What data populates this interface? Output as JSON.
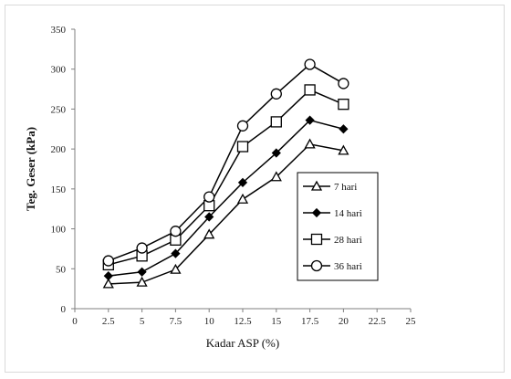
{
  "chart_data": {
    "type": "line",
    "xlabel": "Kadar ASP (%)",
    "ylabel": "Teg. Geser (kPa)",
    "xlim": [
      0,
      25
    ],
    "ylim": [
      0,
      350
    ],
    "xticks": [
      "0",
      "2.5",
      "5",
      "7.5",
      "10",
      "12.5",
      "15",
      "17.5",
      "20",
      "22.5",
      "25"
    ],
    "yticks": [
      "0",
      "50",
      "100",
      "150",
      "200",
      "250",
      "300",
      "350"
    ],
    "grid": false,
    "legend_position": "right",
    "x": [
      2.5,
      5,
      7.5,
      10,
      12.5,
      15,
      17.5,
      20
    ],
    "series": [
      {
        "name": "7 hari",
        "marker": "triangle",
        "values": [
          31,
          33,
          49,
          93,
          137,
          165,
          206,
          198
        ]
      },
      {
        "name": "14 hari",
        "marker": "diamond",
        "values": [
          41,
          46,
          69,
          115,
          158,
          195,
          236,
          225
        ]
      },
      {
        "name": "28 hari",
        "marker": "square",
        "values": [
          55,
          66,
          86,
          129,
          203,
          234,
          274,
          256
        ]
      },
      {
        "name": "36 hari",
        "marker": "circle",
        "values": [
          60,
          76,
          97,
          140,
          229,
          269,
          306,
          282
        ]
      }
    ]
  }
}
